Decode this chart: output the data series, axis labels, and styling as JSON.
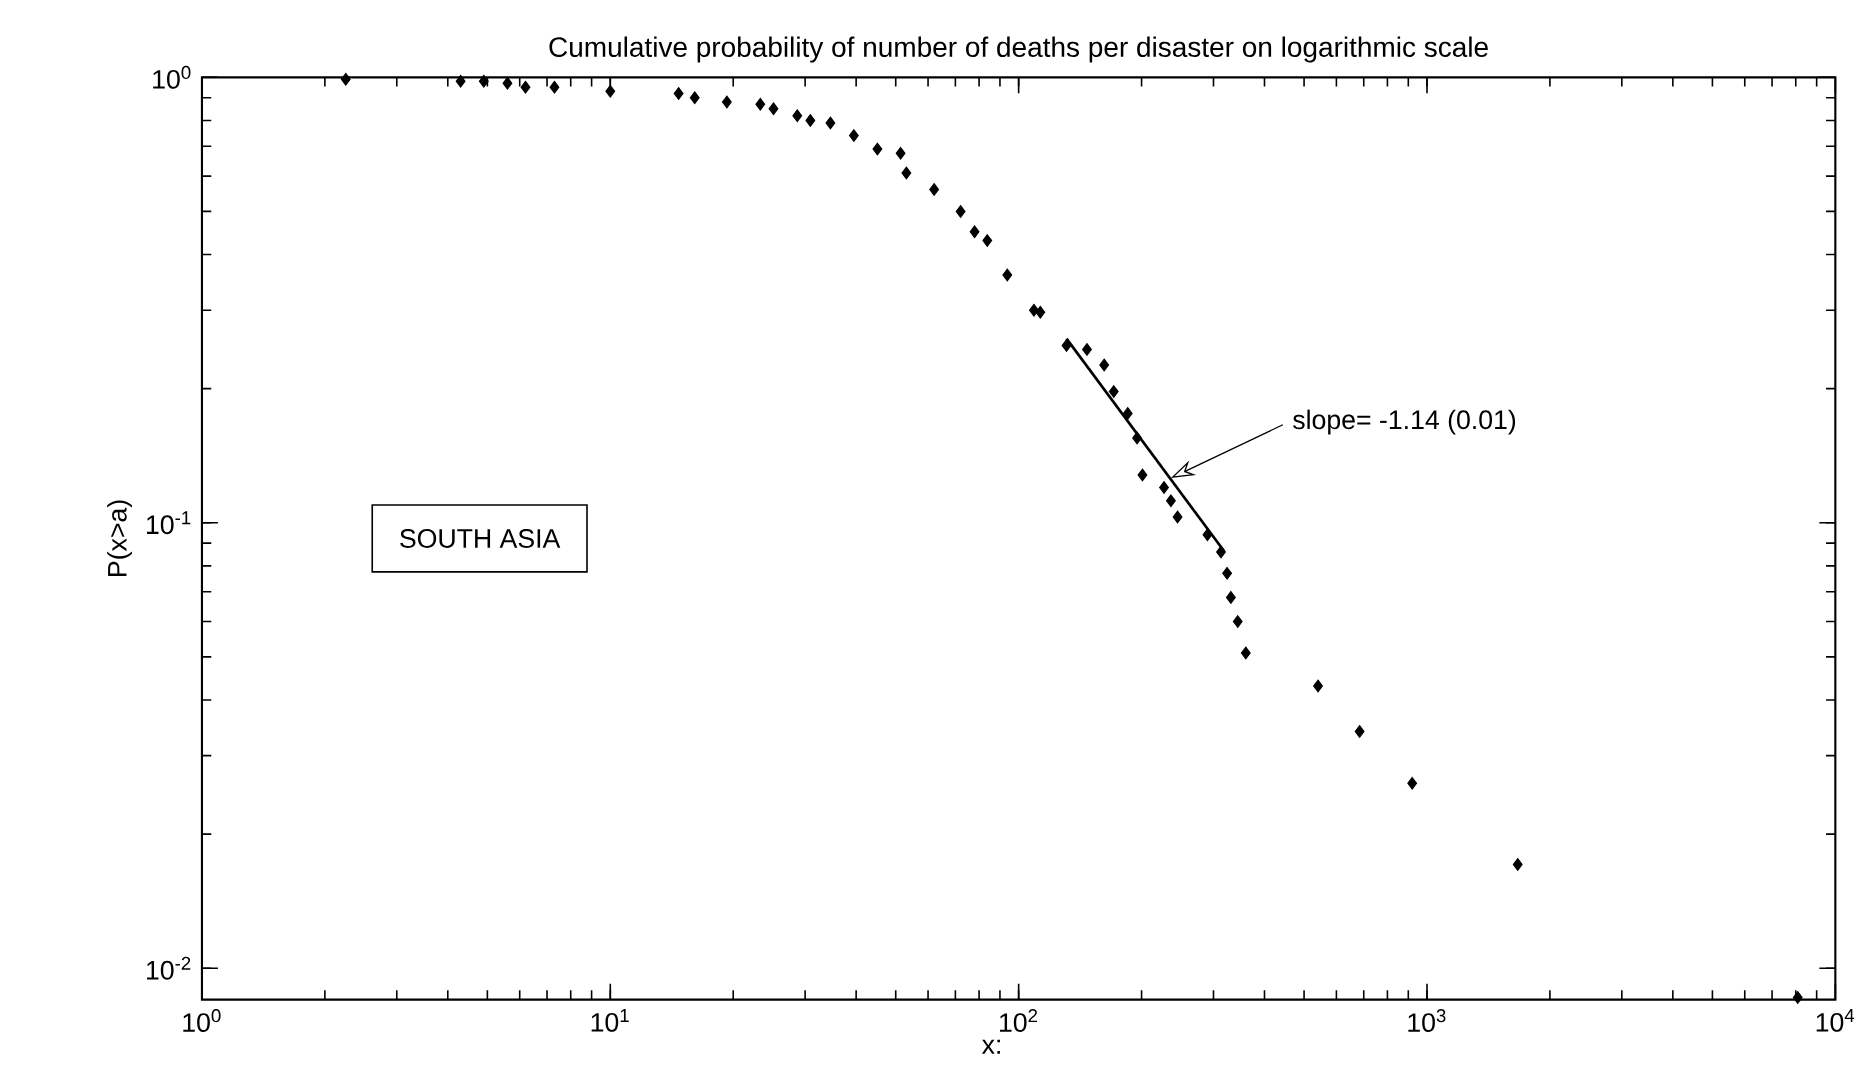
{
  "chart_data": {
    "type": "scatter",
    "title": "Cumulative probability of number of deaths per disaster on logarithmic scale",
    "xlabel": "x:",
    "ylabel": "P(x>a)",
    "log": "xy",
    "grid": false,
    "xlim": [
      1,
      10000
    ],
    "ylim": [
      0.0085,
      1
    ],
    "xticks": [
      {
        "value": 1,
        "label": "10$^{0}$"
      },
      {
        "value": 10,
        "label": "10$^{1}$"
      },
      {
        "value": 100,
        "label": "10$^{2}$"
      },
      {
        "value": 1000,
        "label": "10$^{3}$"
      },
      {
        "value": 10000,
        "label": "10$^{4}$"
      }
    ],
    "yticks": [
      {
        "value": 0.01,
        "label": "10$^{-2}$"
      },
      {
        "value": 0.1,
        "label": "10$^{-1}$"
      },
      {
        "value": 1,
        "label": "10$^{0}$"
      }
    ],
    "series": [
      {
        "marker": "diamond",
        "color": "#000000",
        "x": [
          2.25,
          4.3,
          4.9,
          5.6,
          6.2,
          7.3,
          10,
          14.7,
          16.1,
          19.3,
          23.3,
          25.1,
          28.7,
          30.9,
          34.6,
          39.5,
          45.1,
          51.4,
          53.1,
          62.1,
          72.1,
          78,
          83.8,
          93.8,
          109,
          113,
          131,
          147,
          162,
          171,
          185,
          195,
          201,
          227,
          236,
          245,
          290,
          313,
          324,
          331,
          344,
          360,
          541,
          684,
          920,
          1668,
          8090
        ],
        "values": [
          0.99,
          0.98,
          0.98,
          0.97,
          0.95,
          0.95,
          0.93,
          0.92,
          0.9,
          0.88,
          0.87,
          0.85,
          0.82,
          0.8,
          0.79,
          0.74,
          0.69,
          0.675,
          0.61,
          0.56,
          0.5,
          0.45,
          0.43,
          0.36,
          0.3,
          0.297,
          0.25,
          0.245,
          0.226,
          0.197,
          0.176,
          0.155,
          0.128,
          0.12,
          0.112,
          0.103,
          0.094,
          0.086,
          0.077,
          0.068,
          0.06,
          0.051,
          0.043,
          0.034,
          0.026,
          0.0171,
          0.0086
        ]
      },
      {
        "type": "line",
        "color": "#000000",
        "x": [
          131,
          318
        ],
        "values": [
          0.259,
          0.0865
        ]
      }
    ],
    "annotations": [
      {
        "text": "slope= -1.14 (0.01)",
        "x": 236,
        "y": 0.126
      },
      "SOUTH ASIA"
    ]
  }
}
